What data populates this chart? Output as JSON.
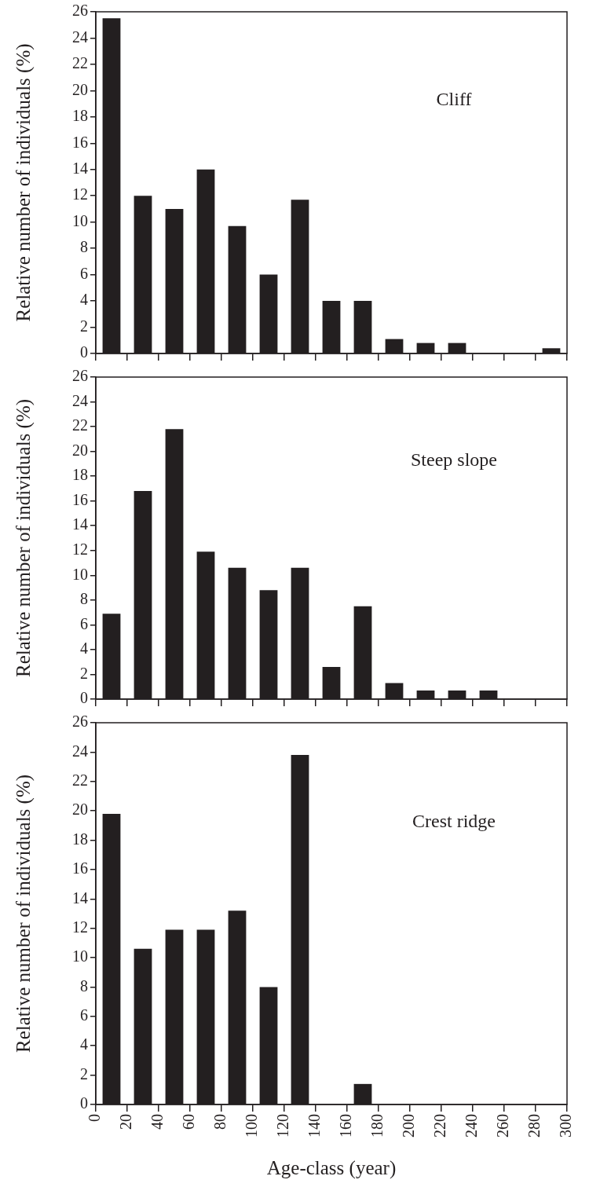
{
  "chart_data": [
    {
      "type": "bar",
      "x": [
        10,
        30,
        50,
        70,
        90,
        110,
        130,
        150,
        170,
        190,
        210,
        230,
        250,
        270,
        290
      ],
      "values": [
        25.5,
        12,
        11,
        14,
        9.7,
        6,
        11.7,
        4,
        4,
        1.1,
        0.8,
        0.8,
        0,
        0,
        0.4
      ],
      "color": "#231f20",
      "xlim": [
        0,
        300
      ],
      "xticks": [
        {
          "value": 0,
          "label": null
        },
        {
          "value": 20,
          "label": null
        },
        {
          "value": 40,
          "label": null
        },
        {
          "value": 60,
          "label": null
        },
        {
          "value": 80,
          "label": null
        },
        {
          "value": 100,
          "label": null
        },
        {
          "value": 120,
          "label": null
        },
        {
          "value": 140,
          "label": null
        },
        {
          "value": 160,
          "label": null
        },
        {
          "value": 180,
          "label": null
        },
        {
          "value": 200,
          "label": null
        },
        {
          "value": 220,
          "label": null
        },
        {
          "value": 240,
          "label": null
        },
        {
          "value": 260,
          "label": null
        },
        {
          "value": 280,
          "label": null
        },
        {
          "value": 300,
          "label": null
        }
      ],
      "ylim": [
        0,
        26
      ],
      "yticks": [
        0,
        2,
        4,
        6,
        8,
        10,
        12,
        14,
        16,
        18,
        20,
        22,
        24,
        26
      ],
      "ylabel": "Relative number of individuals (%)",
      "annotations": [
        "Cliff"
      ],
      "tick_labels": "y"
    },
    {
      "type": "bar",
      "x": [
        10,
        30,
        50,
        70,
        90,
        110,
        130,
        150,
        170,
        190,
        210,
        230,
        250,
        270,
        290
      ],
      "values": [
        6.9,
        16.8,
        21.8,
        11.9,
        10.6,
        8.8,
        10.6,
        2.6,
        7.5,
        1.3,
        0.7,
        0.7,
        0.7,
        0,
        0
      ],
      "color": "#231f20",
      "xlim": [
        0,
        300
      ],
      "xticks": [
        {
          "value": 0,
          "label": null
        },
        {
          "value": 20,
          "label": null
        },
        {
          "value": 40,
          "label": null
        },
        {
          "value": 60,
          "label": null
        },
        {
          "value": 80,
          "label": null
        },
        {
          "value": 100,
          "label": null
        },
        {
          "value": 120,
          "label": null
        },
        {
          "value": 140,
          "label": null
        },
        {
          "value": 160,
          "label": null
        },
        {
          "value": 180,
          "label": null
        },
        {
          "value": 200,
          "label": null
        },
        {
          "value": 220,
          "label": null
        },
        {
          "value": 240,
          "label": null
        },
        {
          "value": 260,
          "label": null
        },
        {
          "value": 280,
          "label": null
        },
        {
          "value": 300,
          "label": null
        }
      ],
      "ylim": [
        0,
        26
      ],
      "yticks": [
        0,
        2,
        4,
        6,
        8,
        10,
        12,
        14,
        16,
        18,
        20,
        22,
        24,
        26
      ],
      "ylabel": "Relative number of individuals (%)",
      "annotations": [
        "Steep slope"
      ],
      "tick_labels": "y"
    },
    {
      "type": "bar",
      "x": [
        10,
        30,
        50,
        70,
        90,
        110,
        130,
        150,
        170,
        190,
        210,
        230,
        250,
        270,
        290
      ],
      "values": [
        19.8,
        10.6,
        11.9,
        11.9,
        13.2,
        8,
        23.8,
        0,
        1.4,
        0,
        0,
        0,
        0,
        0,
        0
      ],
      "color": "#231f20",
      "xlim": [
        0,
        300
      ],
      "xticks": [
        0,
        20,
        40,
        60,
        80,
        100,
        120,
        140,
        160,
        180,
        200,
        220,
        240,
        260,
        280,
        300
      ],
      "ylim": [
        0,
        26
      ],
      "yticks": [
        0,
        2,
        4,
        6,
        8,
        10,
        12,
        14,
        16,
        18,
        20,
        22,
        24,
        26
      ],
      "xlabel": "Age-class (year)",
      "ylabel": "Relative number of individuals (%)",
      "annotations": [
        "Crest ridge"
      ]
    }
  ]
}
